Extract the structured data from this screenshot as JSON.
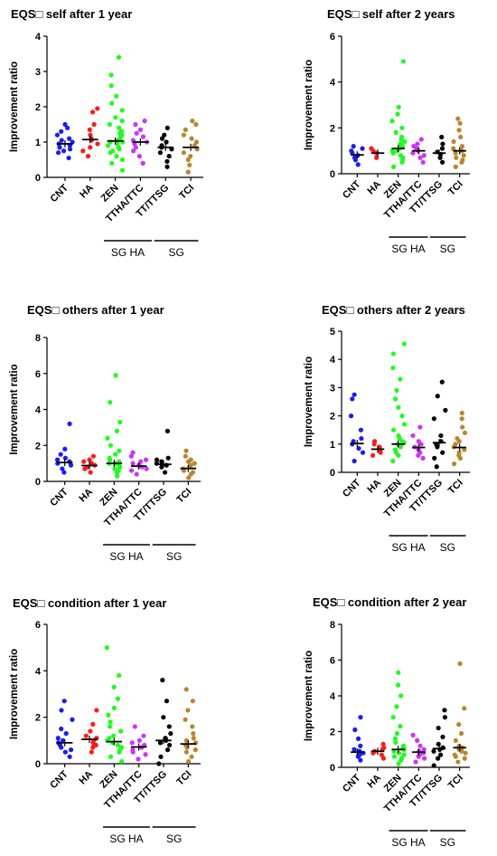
{
  "figure": {
    "group_labels": [
      "SG HA",
      "SG"
    ],
    "colors": {
      "CNT": "#1a1aff",
      "HA": "#ff1a1a",
      "ZEN": "#1aff1a",
      "TTHA/TTC": "#cc33ff",
      "TT/TTSG": "#000000",
      "TCI": "#b8862e"
    }
  },
  "chart_data": [
    {
      "type": "scatter",
      "title": "EQS□  self after 1 year",
      "ylabel": "Improvement ratio",
      "ylim": [
        0,
        4
      ],
      "yticks": [
        0,
        1,
        2,
        3,
        4
      ],
      "categories": [
        "CNT",
        "HA",
        "ZEN",
        "TTHA/TTC",
        "TT/TTSG",
        "TCI"
      ],
      "points": [
        [
          0.55,
          0.7,
          0.75,
          0.8,
          0.85,
          0.9,
          0.95,
          1.0,
          1.05,
          1.1,
          1.2,
          1.3,
          1.4,
          1.5
        ],
        [
          0.6,
          0.75,
          0.85,
          0.95,
          1.05,
          1.1,
          1.2,
          1.35,
          1.5,
          1.85,
          1.95
        ],
        [
          0.2,
          0.4,
          0.5,
          0.6,
          0.7,
          0.75,
          0.8,
          0.85,
          0.9,
          0.95,
          1.0,
          1.0,
          1.05,
          1.1,
          1.15,
          1.2,
          1.25,
          1.3,
          1.4,
          1.5,
          1.6,
          1.7,
          1.9,
          2.1,
          2.3,
          2.6,
          2.9,
          3.4
        ],
        [
          0.4,
          0.6,
          0.75,
          0.85,
          0.95,
          1.0,
          1.05,
          1.15,
          1.25,
          1.35,
          1.5,
          1.6
        ],
        [
          0.3,
          0.45,
          0.6,
          0.7,
          0.8,
          0.85,
          0.9,
          1.0,
          1.1,
          1.2,
          1.4
        ],
        [
          0.15,
          0.35,
          0.5,
          0.6,
          0.7,
          0.8,
          0.9,
          1.0,
          1.1,
          1.2,
          1.35,
          1.5,
          1.6
        ]
      ],
      "means": [
        0.95,
        1.07,
        1.03,
        1.0,
        0.85,
        0.85
      ]
    },
    {
      "type": "scatter",
      "title": "EQS□  self after 2 years",
      "ylabel": "Improvement ratio",
      "ylim": [
        0,
        6
      ],
      "yticks": [
        0,
        2,
        4,
        6
      ],
      "categories": [
        "CNT",
        "HA",
        "ZEN",
        "TTHA/TTC",
        "TT/TTSG",
        "TCI"
      ],
      "points": [
        [
          0.4,
          0.6,
          0.7,
          0.8,
          0.9,
          1.0,
          1.1,
          1.2
        ],
        [
          0.7,
          0.9,
          1.0,
          1.1
        ],
        [
          0.3,
          0.5,
          0.6,
          0.7,
          0.8,
          0.9,
          1.0,
          1.0,
          1.1,
          1.2,
          1.3,
          1.4,
          1.5,
          1.6,
          1.8,
          2.0,
          2.3,
          2.6,
          2.9,
          4.9
        ],
        [
          0.5,
          0.7,
          0.8,
          0.9,
          1.0,
          1.1,
          1.2,
          1.3,
          1.5
        ],
        [
          0.5,
          0.7,
          0.85,
          0.95,
          1.1,
          1.3,
          1.6
        ],
        [
          0.3,
          0.5,
          0.6,
          0.7,
          0.8,
          0.9,
          1.0,
          1.1,
          1.2,
          1.4,
          1.6,
          1.9,
          2.2,
          2.4
        ]
      ],
      "means": [
        0.82,
        0.9,
        1.1,
        1.0,
        0.9,
        1.0
      ]
    },
    {
      "type": "scatter",
      "title": "EQS□  others after 1 year",
      "ylabel": "Improvement ratio",
      "ylim": [
        0,
        8
      ],
      "yticks": [
        0,
        2,
        4,
        6,
        8
      ],
      "categories": [
        "CNT",
        "HA",
        "ZEN",
        "TTHA/TTC",
        "TT/TTSG",
        "TCI"
      ],
      "points": [
        [
          0.5,
          0.7,
          0.9,
          1.0,
          1.1,
          1.2,
          1.3,
          1.5,
          1.8,
          3.2
        ],
        [
          0.5,
          0.7,
          0.8,
          0.9,
          1.0,
          1.1,
          1.2,
          1.4
        ],
        [
          0.3,
          0.5,
          0.6,
          0.7,
          0.8,
          0.9,
          1.0,
          1.0,
          1.1,
          1.2,
          1.3,
          1.5,
          1.7,
          2.0,
          2.4,
          2.8,
          3.3,
          4.4,
          5.9
        ],
        [
          0.4,
          0.6,
          0.7,
          0.8,
          0.9,
          1.0,
          1.1,
          1.2,
          1.4,
          1.6
        ],
        [
          0.5,
          0.8,
          0.9,
          1.0,
          1.1,
          1.2,
          1.3,
          2.8
        ],
        [
          0.2,
          0.4,
          0.5,
          0.6,
          0.7,
          0.8,
          0.9,
          1.0,
          1.1,
          1.2,
          1.4,
          1.7
        ]
      ],
      "means": [
        1.05,
        0.88,
        1.0,
        0.85,
        0.95,
        0.72
      ]
    },
    {
      "type": "scatter",
      "title": "EQS□  others after 2 years",
      "ylabel": "Improvement ratio",
      "ylim": [
        0,
        5
      ],
      "yticks": [
        0,
        1,
        2,
        3,
        4,
        5
      ],
      "categories": [
        "CNT",
        "HA",
        "ZEN",
        "TTHA/TTC",
        "TT/TTSG",
        "TCI"
      ],
      "points": [
        [
          0.4,
          0.7,
          0.85,
          1.0,
          1.1,
          1.2,
          1.5,
          2.0,
          2.6,
          2.75
        ],
        [
          0.6,
          0.7,
          0.8,
          0.9,
          1.0,
          1.1
        ],
        [
          0.4,
          0.6,
          0.7,
          0.8,
          0.9,
          1.0,
          1.05,
          1.1,
          1.2,
          1.3,
          1.5,
          1.7,
          2.0,
          2.3,
          2.6,
          2.9,
          3.3,
          3.7,
          4.2,
          4.55
        ],
        [
          0.5,
          0.6,
          0.7,
          0.8,
          0.9,
          1.0,
          1.1,
          1.3,
          1.6
        ],
        [
          0.2,
          0.5,
          0.7,
          0.9,
          1.0,
          1.1,
          1.3,
          1.9,
          2.2,
          2.7,
          3.2
        ],
        [
          0.3,
          0.5,
          0.6,
          0.7,
          0.8,
          0.9,
          1.0,
          1.1,
          1.2,
          1.4,
          1.6,
          1.9,
          2.1
        ]
      ],
      "means": [
        1.02,
        0.82,
        1.0,
        0.88,
        1.05,
        0.88
      ]
    },
    {
      "type": "scatter",
      "title": "EQS□  condition after 1 year",
      "ylabel": "Improvement ratio",
      "ylim": [
        0,
        6
      ],
      "yticks": [
        0,
        2,
        4,
        6
      ],
      "categories": [
        "CNT",
        "HA",
        "ZEN",
        "TTHA/TTC",
        "TT/TTSG",
        "TCI"
      ],
      "points": [
        [
          0.3,
          0.5,
          0.6,
          0.7,
          0.8,
          0.9,
          1.0,
          1.1,
          1.3,
          1.5,
          1.9,
          2.3,
          2.7
        ],
        [
          0.5,
          0.7,
          0.8,
          0.9,
          1.0,
          1.1,
          1.2,
          1.4,
          1.7,
          2.3
        ],
        [
          0.1,
          0.3,
          0.5,
          0.6,
          0.7,
          0.8,
          0.9,
          1.0,
          1.0,
          1.1,
          1.2,
          1.4,
          1.6,
          1.8,
          2.1,
          2.4,
          2.8,
          3.3,
          3.8,
          5.0
        ],
        [
          0.2,
          0.4,
          0.5,
          0.6,
          0.7,
          0.8,
          0.9,
          1.0,
          1.2,
          1.6
        ],
        [
          0.0,
          0.3,
          0.6,
          0.8,
          0.9,
          1.0,
          1.1,
          1.3,
          1.6,
          2.0,
          2.7,
          3.6
        ],
        [
          0.1,
          0.3,
          0.5,
          0.6,
          0.7,
          0.8,
          0.9,
          1.0,
          1.1,
          1.3,
          1.6,
          1.9,
          2.3,
          2.7,
          3.2
        ]
      ],
      "means": [
        0.9,
        1.05,
        0.95,
        0.72,
        1.0,
        0.85
      ]
    },
    {
      "type": "scatter",
      "title": "EQS□  condition after 2 year",
      "ylabel": "Improvement ratio",
      "ylim": [
        0,
        8
      ],
      "yticks": [
        0,
        2,
        4,
        6,
        8
      ],
      "categories": [
        "CNT",
        "HA",
        "ZEN",
        "TTHA/TTC",
        "TT/TTSG",
        "TCI"
      ],
      "points": [
        [
          0.4,
          0.6,
          0.7,
          0.8,
          0.9,
          1.0,
          1.2,
          1.6,
          2.1,
          2.8
        ],
        [
          0.5,
          0.7,
          0.8,
          0.9,
          1.0,
          1.1,
          1.3
        ],
        [
          0.2,
          0.4,
          0.5,
          0.6,
          0.7,
          0.8,
          0.9,
          1.0,
          1.0,
          1.1,
          1.2,
          1.4,
          1.6,
          1.9,
          2.3,
          2.8,
          3.4,
          4.0,
          4.6,
          5.3
        ],
        [
          0.3,
          0.5,
          0.6,
          0.7,
          0.8,
          0.9,
          1.0,
          1.2,
          1.5,
          1.8
        ],
        [
          0.1,
          0.5,
          0.7,
          0.9,
          1.0,
          1.1,
          1.3,
          1.7,
          2.2,
          2.8,
          3.2
        ],
        [
          0.3,
          0.5,
          0.6,
          0.7,
          0.8,
          0.9,
          1.0,
          1.1,
          1.2,
          1.5,
          1.9,
          2.4,
          3.3,
          5.8
        ]
      ],
      "means": [
        0.85,
        0.9,
        1.0,
        0.85,
        1.05,
        1.1
      ]
    }
  ]
}
